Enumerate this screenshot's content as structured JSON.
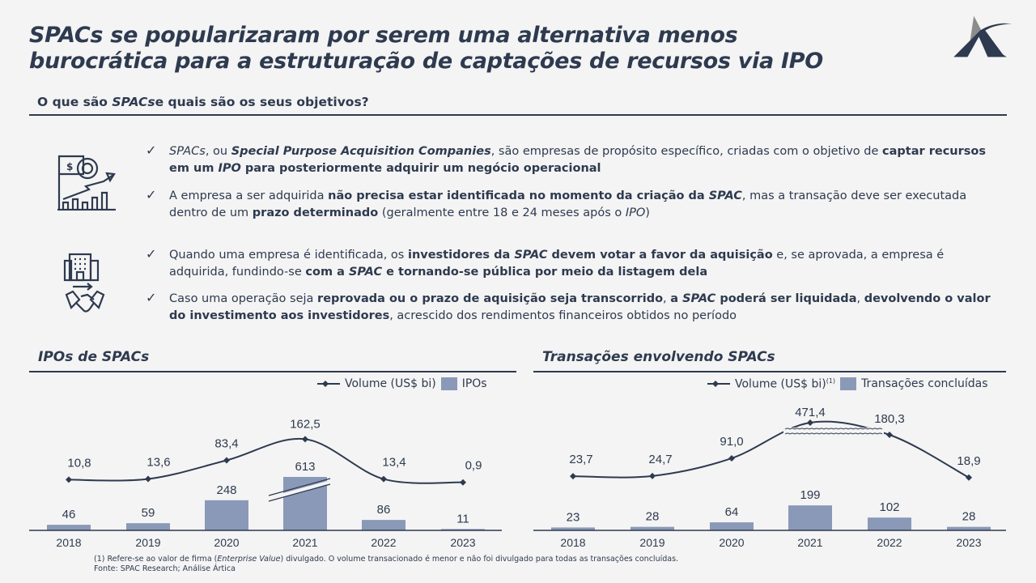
{
  "title": [
    "SPACs se popularizaram por serem uma alternativa menos",
    "burocrática para a estruturação de captações de recursos via IPO"
  ],
  "subtitle": {
    "a": "O que são ",
    "b": "SPACs",
    "c": "e quais são os seus objetivos?"
  },
  "logo": "Ártica",
  "colors": {
    "navy": "#2e3a4f",
    "bar": "#8a99b8",
    "bg": "#f4f4f4",
    "logo_gray": "#8c8c8c"
  },
  "icons": [
    "chart-flag-gear-icon",
    "building-handshake-icon",
    "checkmark-icon"
  ],
  "bullets": [
    [
      {
        "t": "SPACs",
        "i": 1
      },
      {
        "t": ", ou "
      },
      {
        "t": "Special Purpose Acquisition Companies",
        "b": 1,
        "i": 1
      },
      {
        "t": ", são empresas de propósito específico, criadas com o objetivo de "
      },
      {
        "t": "captar recursos em um ",
        "b": 1
      },
      {
        "t": "IPO",
        "b": 1,
        "i": 1
      },
      {
        "t": " para posteriormente adquirir um negócio operacional",
        "b": 1
      }
    ],
    [
      {
        "t": "A empresa a ser adquirida "
      },
      {
        "t": "não precisa estar identificada no momento da criação da ",
        "b": 1
      },
      {
        "t": "SPAC",
        "b": 1,
        "i": 1
      },
      {
        "t": ", mas a transação deve ser executada dentro de um "
      },
      {
        "t": "prazo determinado",
        "b": 1
      },
      {
        "t": " (geralmente entre 18 e 24 meses após o "
      },
      {
        "t": "IPO",
        "i": 1
      },
      {
        "t": ")"
      }
    ],
    [
      {
        "t": "Quando uma empresa é identificada, os "
      },
      {
        "t": "investidores da ",
        "b": 1
      },
      {
        "t": "SPAC",
        "b": 1,
        "i": 1
      },
      {
        "t": " devem votar a favor da aquisição",
        "b": 1
      },
      {
        "t": " e, se aprovada, a empresa é adquirida, fundindo-se "
      },
      {
        "t": "com a ",
        "b": 1
      },
      {
        "t": "SPAC",
        "b": 1,
        "i": 1
      },
      {
        "t": " e tornando-se pública por meio da listagem dela",
        "b": 1
      }
    ],
    [
      {
        "t": "Caso uma operação seja "
      },
      {
        "t": "reprovada ou o prazo de aquisição seja transcorrido",
        "b": 1
      },
      {
        "t": ", "
      },
      {
        "t": "a ",
        "b": 1
      },
      {
        "t": "SPAC",
        "b": 1,
        "i": 1
      },
      {
        "t": " poderá ser liquidada",
        "b": 1
      },
      {
        "t": ", "
      },
      {
        "t": "devolvendo o valor do investimento aos investidores",
        "b": 1
      },
      {
        "t": ", acrescido dos rendimentos financeiros obtidos no período"
      }
    ]
  ],
  "chart_data": [
    {
      "type": "bar+line",
      "title": "IPOs de SPACs",
      "categories": [
        "2018",
        "2019",
        "2020",
        "2021",
        "2022",
        "2023"
      ],
      "series": [
        {
          "name": "Volume (US$ bi)",
          "type": "line",
          "values": [
            10.8,
            13.6,
            83.4,
            162.5,
            13.4,
            0.9
          ],
          "labels": [
            "10,8",
            "13,6",
            "83,4",
            "162,5",
            "13,4",
            "0,9"
          ]
        },
        {
          "name": "IPOs",
          "type": "bar",
          "values": [
            46,
            59,
            248,
            613,
            86,
            11
          ],
          "labels": [
            "46",
            "59",
            "248",
            "613",
            "86",
            "11"
          ]
        }
      ],
      "axis_break": "bar 2021",
      "legend": "top-right"
    },
    {
      "type": "bar+line",
      "title": "Transações envolvendo SPACs",
      "categories": [
        "2018",
        "2019",
        "2020",
        "2021",
        "2022",
        "2023"
      ],
      "series": [
        {
          "name": "Volume (US$ bi)",
          "name_sup": "(1)",
          "type": "line",
          "values": [
            23.7,
            24.7,
            91.0,
            471.4,
            180.3,
            18.9
          ],
          "labels": [
            "23,7",
            "24,7",
            "91,0",
            "471,4",
            "180,3",
            "18,9"
          ]
        },
        {
          "name": "Transações concluídas",
          "type": "bar",
          "values": [
            23,
            28,
            64,
            199,
            102,
            28
          ],
          "labels": [
            "23",
            "28",
            "64",
            "199",
            "102",
            "28"
          ]
        }
      ],
      "axis_break": "line 2021-2022",
      "legend": "top-right"
    }
  ],
  "footnote": {
    "a": "(1) Refere-se ao valor de firma (",
    "b": "Enterprise Value",
    "c": ") divulgado. O volume transacionado é menor e não foi divulgado para todas as transações concluídas.",
    "source": "Fonte: SPAC Research; Análise Ártica"
  }
}
